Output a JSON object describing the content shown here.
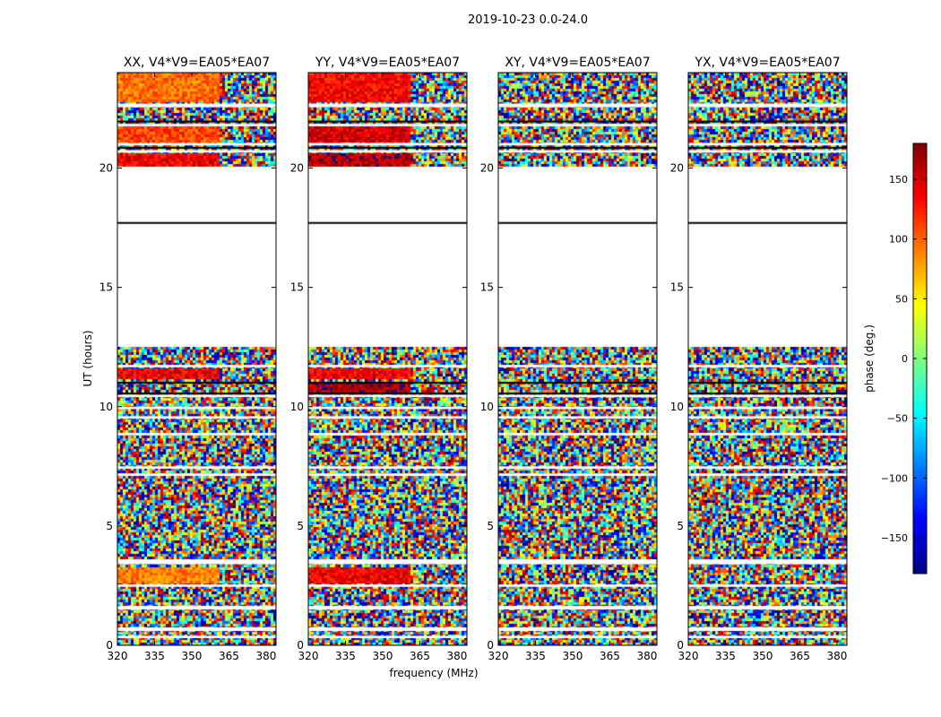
{
  "figure": {
    "suptitle": "2019-10-23 0.0-24.0",
    "xlabel": "frequency (MHz)",
    "ylabel": "UT (hours)"
  },
  "chart_data": [
    {
      "type": "heatmap",
      "title": "XX, V4*V9=EA05*EA07",
      "xlabel": "frequency (MHz)",
      "ylabel": "UT (hours)",
      "xlim": [
        320,
        384
      ],
      "ylim": [
        0,
        24
      ],
      "xticks": [
        320,
        335,
        350,
        365,
        380
      ],
      "yticks": [
        0,
        5,
        10,
        15,
        20
      ],
      "coherent_blocks": [
        {
          "t0": 20.1,
          "t1": 20.6,
          "f1": 361,
          "phase": 140
        },
        {
          "t0": 21.1,
          "t1": 21.7,
          "f1": 361,
          "phase": 110
        },
        {
          "t0": 22.8,
          "t1": 24.0,
          "f1": 361,
          "phase": 95
        },
        {
          "t0": 11.1,
          "t1": 11.6,
          "f1": 361,
          "phase": 140
        },
        {
          "t0": 2.6,
          "t1": 3.3,
          "f1": 361,
          "phase": 90
        }
      ]
    },
    {
      "type": "heatmap",
      "title": "YY, V4*V9=EA05*EA07",
      "xlabel": "frequency (MHz)",
      "ylabel": "UT (hours)",
      "xlim": [
        320,
        384
      ],
      "ylim": [
        0,
        24
      ],
      "xticks": [
        320,
        335,
        350,
        365,
        380
      ],
      "yticks": [
        0,
        5,
        10,
        15,
        20
      ],
      "coherent_blocks": [
        {
          "t0": 20.1,
          "t1": 20.6,
          "f1": 361,
          "phase": 160
        },
        {
          "t0": 21.1,
          "t1": 21.7,
          "f1": 361,
          "phase": 150
        },
        {
          "t0": 22.8,
          "t1": 24.0,
          "f1": 361,
          "phase": 135
        },
        {
          "t0": 10.6,
          "t1": 11.0,
          "f1": 361,
          "phase": 165
        },
        {
          "t0": 11.1,
          "t1": 11.6,
          "f1": 361,
          "phase": 140
        },
        {
          "t0": 2.6,
          "t1": 3.3,
          "f1": 361,
          "phase": 140
        }
      ]
    },
    {
      "type": "heatmap",
      "title": "XY, V4*V9=EA05*EA07",
      "xlabel": "frequency (MHz)",
      "ylabel": "UT (hours)",
      "xlim": [
        320,
        384
      ],
      "ylim": [
        0,
        24
      ],
      "xticks": [
        320,
        335,
        350,
        365,
        380
      ],
      "yticks": [
        0,
        5,
        10,
        15,
        20
      ],
      "coherent_blocks": []
    },
    {
      "type": "heatmap",
      "title": "YX, V4*V9=EA05*EA07",
      "xlabel": "frequency (MHz)",
      "ylabel": "UT (hours)",
      "xlim": [
        320,
        384
      ],
      "ylim": [
        0,
        24
      ],
      "xticks": [
        320,
        335,
        350,
        365,
        380
      ],
      "yticks": [
        0,
        5,
        10,
        15,
        20
      ],
      "coherent_blocks": []
    }
  ],
  "data_ranges_hours": [
    [
      0.0,
      12.5
    ],
    [
      20.1,
      24.0
    ]
  ],
  "flag_gaps_hours": [
    [
      0.3,
      0.4
    ],
    [
      0.6,
      0.75
    ],
    [
      1.5,
      1.65
    ],
    [
      2.45,
      2.55
    ],
    [
      3.4,
      3.6
    ],
    [
      7.1,
      7.2
    ],
    [
      7.4,
      7.5
    ],
    [
      8.8,
      8.9
    ],
    [
      9.5,
      9.6
    ],
    [
      9.9,
      10.0
    ],
    [
      10.4,
      10.5
    ],
    [
      11.65,
      11.75
    ],
    [
      17.6,
      17.75
    ],
    [
      20.65,
      20.75
    ],
    [
      20.95,
      21.05
    ],
    [
      21.75,
      21.85
    ],
    [
      22.55,
      22.7
    ]
  ],
  "black_lines_hours": [
    17.7,
    10.55,
    11.0,
    20.85,
    21.95
  ],
  "colorbar": {
    "label": "phase (deg.)",
    "range": [
      -180,
      180
    ],
    "ticks": [
      "150",
      "100",
      "50",
      "0",
      "−50",
      "−100",
      "−150"
    ],
    "tick_values": [
      150,
      100,
      50,
      0,
      -50,
      -100,
      -150
    ],
    "colormap": "jet"
  }
}
